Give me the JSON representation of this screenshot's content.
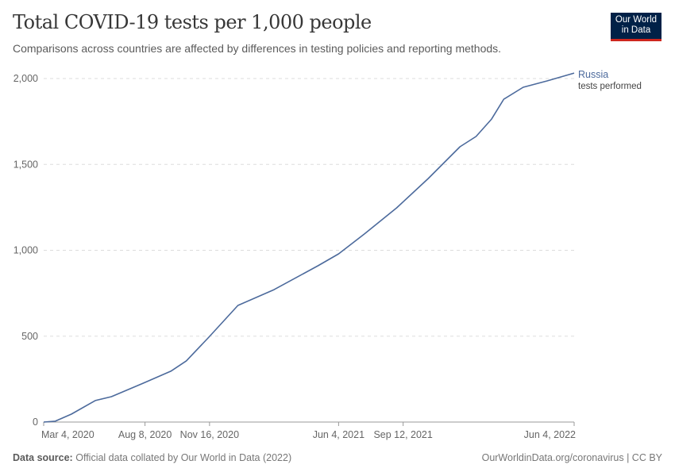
{
  "header": {
    "title": "Total COVID-19 tests per 1,000 people",
    "subtitle": "Comparisons across countries are affected by differences in testing policies and reporting methods.",
    "logo": "Our World in Data"
  },
  "footer": {
    "source_label": "Data source:",
    "source_text": "Official data collated by Our World in Data (2022)",
    "url": "OurWorldinData.org/coronavirus | CC BY"
  },
  "chart_data": {
    "type": "line",
    "title": "Total COVID-19 tests per 1,000 people",
    "xlim": [
      "2020-03-04",
      "2022-06-04"
    ],
    "ylim": [
      0,
      2000
    ],
    "grid": "horizontal dashed",
    "x_ticks": [
      {
        "date": "2020-03-04",
        "label": "Mar 4, 2020"
      },
      {
        "date": "2020-08-08",
        "label": "Aug 8, 2020"
      },
      {
        "date": "2020-11-16",
        "label": "Nov 16, 2020"
      },
      {
        "date": "2021-06-04",
        "label": "Jun 4, 2021"
      },
      {
        "date": "2021-09-12",
        "label": "Sep 12, 2021"
      },
      {
        "date": "2022-06-04",
        "label": "Jun 4, 2022"
      }
    ],
    "y_ticks": [
      {
        "value": 0,
        "label": "0"
      },
      {
        "value": 500,
        "label": "500"
      },
      {
        "value": 1000,
        "label": "1,000"
      },
      {
        "value": 1500,
        "label": "1,500"
      },
      {
        "value": 2000,
        "label": "2,000"
      }
    ],
    "series": [
      {
        "name": "Russia",
        "sublabel": "tests performed",
        "color": "#4c6a9c",
        "points": [
          [
            "2020-03-04",
            0
          ],
          [
            "2020-03-22",
            5
          ],
          [
            "2020-04-16",
            46
          ],
          [
            "2020-05-23",
            125
          ],
          [
            "2020-06-17",
            148
          ],
          [
            "2020-08-05",
            226
          ],
          [
            "2020-09-17",
            296
          ],
          [
            "2020-10-11",
            356
          ],
          [
            "2020-11-15",
            494
          ],
          [
            "2020-12-30",
            679
          ],
          [
            "2021-02-24",
            771
          ],
          [
            "2021-05-03",
            910
          ],
          [
            "2021-06-04",
            979
          ],
          [
            "2021-07-14",
            1095
          ],
          [
            "2021-09-02",
            1247
          ],
          [
            "2021-10-21",
            1418
          ],
          [
            "2021-12-09",
            1603
          ],
          [
            "2022-01-03",
            1663
          ],
          [
            "2022-01-27",
            1764
          ],
          [
            "2022-02-15",
            1880
          ],
          [
            "2022-03-17",
            1949
          ],
          [
            "2022-04-23",
            1986
          ],
          [
            "2022-06-04",
            2032
          ]
        ]
      }
    ]
  }
}
